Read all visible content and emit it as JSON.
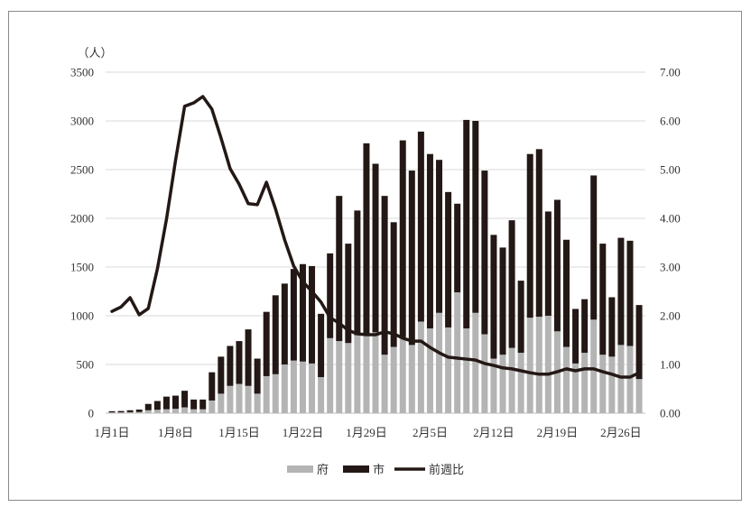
{
  "chart_data": {
    "type": "bar",
    "stacked": true,
    "x": [
      "1月1日",
      "1月2日",
      "1月3日",
      "1月4日",
      "1月5日",
      "1月6日",
      "1月7日",
      "1月8日",
      "1月9日",
      "1月10日",
      "1月11日",
      "1月12日",
      "1月13日",
      "1月14日",
      "1月15日",
      "1月16日",
      "1月17日",
      "1月18日",
      "1月19日",
      "1月20日",
      "1月21日",
      "1月22日",
      "1月23日",
      "1月24日",
      "1月25日",
      "1月26日",
      "1月27日",
      "1月28日",
      "1月29日",
      "1月30日",
      "1月31日",
      "2月1日",
      "2月2日",
      "2月3日",
      "2月4日",
      "2月5日",
      "2月6日",
      "2月7日",
      "2月8日",
      "2月9日",
      "2月10日",
      "2月11日",
      "2月12日",
      "2月13日",
      "2月14日",
      "2月15日",
      "2月16日",
      "2月17日",
      "2月18日",
      "2月19日",
      "2月20日",
      "2月21日",
      "2月22日",
      "2月23日",
      "2月24日",
      "2月25日",
      "2月26日",
      "2月27日",
      "2月28日"
    ],
    "series": [
      {
        "name": "府",
        "type": "bar",
        "axis": "left",
        "color": "#b4b4b4",
        "values": [
          8,
          8,
          10,
          12,
          30,
          35,
          40,
          45,
          60,
          40,
          40,
          130,
          200,
          280,
          300,
          280,
          200,
          380,
          400,
          500,
          540,
          530,
          510,
          370,
          770,
          740,
          720,
          800,
          800,
          830,
          600,
          680,
          780,
          700,
          940,
          870,
          1030,
          880,
          1240,
          870,
          1030,
          810,
          560,
          600,
          670,
          620,
          980,
          990,
          1000,
          840,
          680,
          510,
          620,
          960,
          600,
          580,
          700,
          690,
          350
        ]
      },
      {
        "name": "市",
        "type": "bar",
        "axis": "left",
        "color": "#231815",
        "values": [
          12,
          14,
          20,
          25,
          65,
          90,
          130,
          135,
          170,
          100,
          100,
          290,
          380,
          410,
          440,
          580,
          360,
          660,
          810,
          830,
          940,
          1000,
          1000,
          650,
          870,
          1490,
          1020,
          1280,
          1970,
          1730,
          1630,
          1280,
          2020,
          1790,
          1950,
          1790,
          1570,
          1390,
          910,
          2140,
          1970,
          1680,
          1270,
          1100,
          1310,
          740,
          1680,
          1720,
          1070,
          1350,
          1100,
          560,
          550,
          1480,
          1140,
          610,
          1100,
          1080,
          760
        ]
      },
      {
        "name": "前週比",
        "type": "line",
        "axis": "right",
        "color": "#231815",
        "values": [
          2.09,
          2.18,
          2.37,
          2.02,
          2.15,
          2.96,
          3.98,
          5.19,
          6.3,
          6.37,
          6.5,
          6.24,
          5.65,
          5.02,
          4.7,
          4.3,
          4.28,
          4.74,
          4.19,
          3.56,
          3.02,
          2.7,
          2.5,
          2.28,
          1.96,
          1.85,
          1.7,
          1.63,
          1.61,
          1.61,
          1.67,
          1.63,
          1.54,
          1.48,
          1.48,
          1.35,
          1.24,
          1.15,
          1.13,
          1.11,
          1.09,
          1.02,
          0.98,
          0.93,
          0.91,
          0.87,
          0.83,
          0.8,
          0.8,
          0.85,
          0.91,
          0.87,
          0.91,
          0.91,
          0.85,
          0.8,
          0.74,
          0.74,
          0.83
        ]
      }
    ],
    "ylabel": "（人）",
    "ylim": [
      0,
      3500
    ],
    "yticks": [
      "0",
      "500",
      "1000",
      "1500",
      "2000",
      "2500",
      "3000",
      "3500"
    ],
    "y2lim": [
      0,
      7
    ],
    "y2ticks": [
      "0.00",
      "1.00",
      "2.00",
      "3.00",
      "4.00",
      "5.00",
      "6.00",
      "7.00"
    ],
    "xticks": [
      "1月1日",
      "1月8日",
      "1月15日",
      "1月22日",
      "1月29日",
      "2月5日",
      "2月12日",
      "2月19日",
      "2月26日"
    ],
    "grid": true,
    "legend_position": "bottom"
  }
}
